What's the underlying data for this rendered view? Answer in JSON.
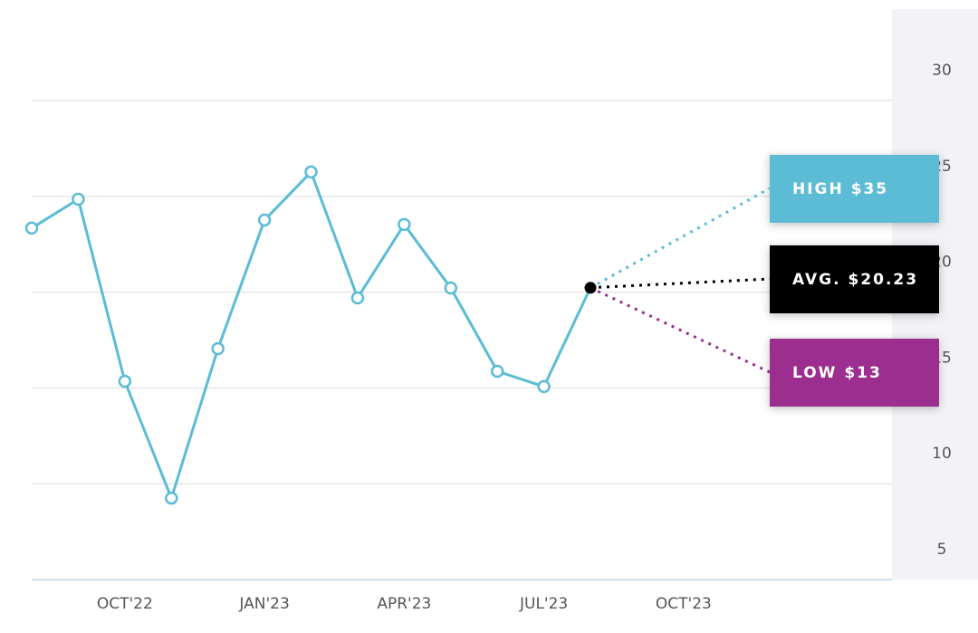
{
  "chart_data": {
    "type": "line",
    "categories": [
      null,
      null,
      "OCT'22",
      null,
      null,
      "JAN'23",
      null,
      null,
      "APR'23",
      null,
      null,
      "JUL'23",
      null,
      null,
      "OCT'23"
    ],
    "series": [
      {
        "color": "#5bbcd6",
        "values": [
          23.34,
          24.85,
          15.35,
          9.25,
          17.05,
          23.76,
          26.27,
          19.7,
          23.53,
          20.22,
          15.87,
          15.07,
          20.23,
          null,
          null
        ]
      }
    ],
    "ylim": [
      5,
      30
    ],
    "yticks": [
      5,
      10,
      15,
      20,
      25,
      30
    ],
    "grid": true,
    "annotations": [
      {
        "text": "HIGH $35",
        "value": 35,
        "color": "#5bbcd6"
      },
      {
        "text": "AVG. $20.23",
        "value": 20.23,
        "color": "#000000"
      },
      {
        "text": "LOW $13",
        "value": 13,
        "color": "#9b2d8e"
      }
    ]
  }
}
